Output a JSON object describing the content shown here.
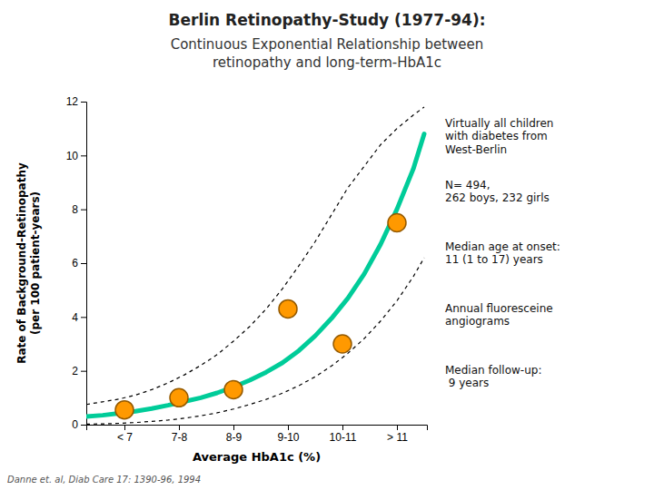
{
  "chart_data": {
    "type": "line",
    "title": "Berlin Retinopathy-Study (1977-94):",
    "subtitle": "Continuous Exponential Relationship between\nretinopathy and long-term-HbA1c",
    "x_label": "Average HbA1c (%)",
    "y_label": "Rate of Background-Retinopathy\n(per 100 patient-years)",
    "xlim": [
      0.3,
      6.55
    ],
    "xticks": [
      {
        "value": 1,
        "label": "< 7"
      },
      {
        "value": 2,
        "label": "7-8"
      },
      {
        "value": 3,
        "label": "8-9"
      },
      {
        "value": 4,
        "label": "9-10"
      },
      {
        "value": 5,
        "label": "10-11"
      },
      {
        "value": 6,
        "label": "> 11"
      }
    ],
    "ylim": [
      0,
      12
    ],
    "yticks": [
      0,
      2,
      4,
      6,
      8,
      10,
      12
    ],
    "series": [
      {
        "type": "line",
        "color": "#000000",
        "line_style": "dashed",
        "x": [
          0.3,
          0.6,
          0.9,
          1.2,
          1.5,
          1.8,
          2.1,
          2.4,
          2.7,
          3.0,
          3.3,
          3.6,
          3.9,
          4.2,
          4.5,
          4.8,
          5.1,
          5.4,
          5.7,
          6.0,
          6.3,
          6.5
        ],
        "values": [
          0.75,
          0.85,
          0.95,
          1.1,
          1.3,
          1.55,
          1.85,
          2.2,
          2.6,
          3.1,
          3.65,
          4.3,
          5.05,
          5.9,
          6.8,
          7.8,
          8.8,
          9.6,
          10.4,
          11.0,
          11.5,
          11.8
        ]
      },
      {
        "type": "line",
        "color": "#000000",
        "line_style": "dashed",
        "x": [
          0.3,
          0.6,
          0.9,
          1.2,
          1.5,
          1.8,
          2.1,
          2.4,
          2.7,
          3.0,
          3.3,
          3.6,
          3.9,
          4.2,
          4.5,
          4.8,
          5.1,
          5.4,
          5.7,
          6.0,
          6.3,
          6.5
        ],
        "values": [
          0.02,
          0.03,
          0.05,
          0.08,
          0.12,
          0.17,
          0.24,
          0.33,
          0.44,
          0.58,
          0.75,
          0.94,
          1.17,
          1.45,
          1.78,
          2.18,
          2.65,
          3.2,
          3.85,
          4.6,
          5.5,
          6.2
        ]
      },
      {
        "type": "line",
        "color": "#00CC99",
        "line_style": "solid",
        "x": [
          0.3,
          0.6,
          0.9,
          1.2,
          1.5,
          1.8,
          2.1,
          2.4,
          2.7,
          3.0,
          3.3,
          3.6,
          3.9,
          4.2,
          4.5,
          4.8,
          5.1,
          5.4,
          5.7,
          6.0,
          6.3,
          6.5
        ],
        "values": [
          0.3,
          0.35,
          0.42,
          0.5,
          0.6,
          0.72,
          0.86,
          1.0,
          1.18,
          1.4,
          1.65,
          1.95,
          2.3,
          2.75,
          3.3,
          3.95,
          4.7,
          5.6,
          6.7,
          8.0,
          9.5,
          10.8
        ]
      },
      {
        "type": "scatter",
        "color": "#FF9900",
        "marker": "circle",
        "x": [
          1,
          2,
          3,
          4,
          5,
          6
        ],
        "values": [
          0.55,
          1.0,
          1.3,
          4.3,
          3.0,
          7.5
        ]
      }
    ],
    "annotations": [
      "Virtually all children\nwith diabetes from\nWest-Berlin",
      " N= 494,\n262 boys, 232 girls",
      "Median age at onset:\n11 (1 to 17) years",
      "Annual fluoresceine\nangiograms",
      "Median follow-up:\n  9 years"
    ],
    "citation": "Danne et. al, Diab Care 17: 1390-96, 1994"
  }
}
